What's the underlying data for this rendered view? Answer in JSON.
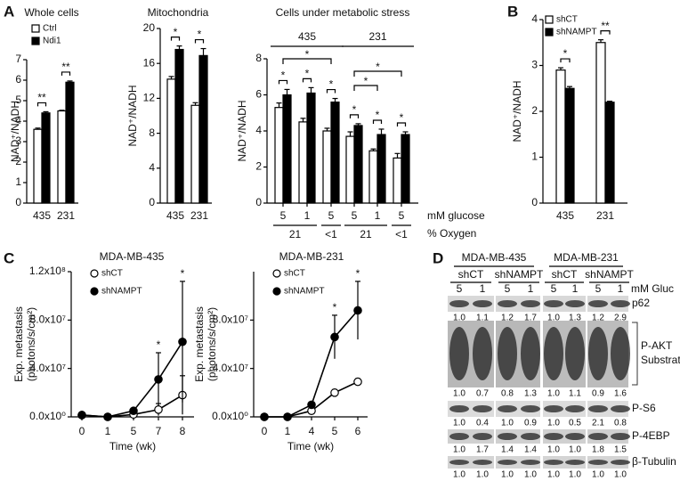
{
  "panel_labels": [
    "A",
    "B",
    "C",
    "D"
  ],
  "chart_data": [
    {
      "type": "bar",
      "title": "Whole cells",
      "ylabel": "NAD⁺/NADH",
      "categories": [
        "435",
        "231"
      ],
      "series": [
        {
          "name": "Ctrl",
          "color": "#ffffff",
          "values": [
            3.6,
            4.5
          ],
          "errors": [
            0.06,
            0.03
          ]
        },
        {
          "name": "Ndi1",
          "color": "#000000",
          "values": [
            4.4,
            5.9
          ],
          "errors": [
            0.06,
            0.06
          ]
        }
      ],
      "ylim": [
        0,
        7
      ],
      "yticks": [
        0,
        1,
        2,
        3,
        4,
        5,
        6,
        7
      ],
      "significance": [
        "**",
        "**"
      ]
    },
    {
      "type": "bar",
      "title": "Mitochondria",
      "ylabel": "NAD⁺/NADH",
      "categories": [
        "435",
        "231"
      ],
      "series": [
        {
          "color": "#ffffff",
          "values": [
            14.2,
            11.2
          ],
          "errors": [
            0.3,
            0.3
          ]
        },
        {
          "color": "#000000",
          "values": [
            17.6,
            16.9
          ],
          "errors": [
            0.4,
            0.8
          ]
        }
      ],
      "ylim": [
        0,
        20
      ],
      "yticks": [
        0,
        4,
        8,
        12,
        16,
        20
      ],
      "significance": [
        "*",
        "*"
      ]
    },
    {
      "type": "bar",
      "title": "Cells under metabolic stress",
      "ylabel": "NAD⁺/NADH",
      "categories": [
        "5",
        "1",
        "5",
        "5",
        "1",
        "5"
      ],
      "category_label": "mM glucose",
      "oxygen": [
        "21",
        "<1",
        "21",
        "<1"
      ],
      "oxygen_label": "% Oxygen",
      "groups": [
        "435",
        "231"
      ],
      "series": [
        {
          "color": "#ffffff",
          "values": [
            5.3,
            4.5,
            4.0,
            3.7,
            2.9,
            2.5
          ],
          "errors": [
            0.25,
            0.2,
            0.15,
            0.25,
            0.1,
            0.25
          ]
        },
        {
          "color": "#000000",
          "values": [
            6.0,
            6.1,
            5.6,
            4.3,
            3.8,
            3.8
          ],
          "errors": [
            0.3,
            0.3,
            0.2,
            0.1,
            0.3,
            0.15
          ]
        }
      ],
      "ylim": [
        0,
        8
      ],
      "yticks": [
        0,
        2,
        4,
        6,
        8
      ],
      "significance": [
        "*",
        "*",
        "*",
        "*",
        "*",
        "*"
      ],
      "comparisons": [
        "*",
        "*",
        "*"
      ]
    },
    {
      "type": "bar",
      "ylabel": "NAD⁺/NADH",
      "categories": [
        "435",
        "231"
      ],
      "series": [
        {
          "name": "shCT",
          "color": "#ffffff",
          "values": [
            2.9,
            3.5
          ],
          "errors": [
            0.05,
            0.06
          ]
        },
        {
          "name": "shNAMPT",
          "color": "#000000",
          "values": [
            2.5,
            2.2
          ],
          "errors": [
            0.04,
            0.02
          ]
        }
      ],
      "ylim": [
        0,
        4
      ],
      "yticks": [
        0,
        1,
        2,
        3,
        4
      ],
      "significance": [
        "*",
        "**"
      ]
    },
    {
      "type": "line",
      "title": "MDA-MB-435",
      "ylabel": "Exp. metastasis",
      "ylabel2": "(photons/s/cm²)",
      "xlabel": "Time (wk)",
      "categories": [
        "0",
        "1",
        "5",
        "7",
        "8"
      ],
      "series": [
        {
          "name": "shCT",
          "color": "#ffffff",
          "values": [
            1500000,
            0,
            2000000,
            6000000,
            18000000
          ],
          "errors": [
            0,
            0,
            1000000,
            5000000,
            16000000
          ]
        },
        {
          "name": "shNAMPT",
          "color": "#000000",
          "values": [
            1500000,
            0,
            5000000,
            31000000,
            62000000
          ],
          "errors": [
            0,
            0,
            1000000,
            22000000,
            50000000
          ]
        }
      ],
      "ylim": [
        0,
        120000000
      ],
      "yticks": [
        {
          "value": 0,
          "label": "0.0x10⁰"
        },
        {
          "value": 40000000,
          "label": "4.0x10⁷"
        },
        {
          "value": 80000000,
          "label": "8.0x10⁷"
        },
        {
          "value": 120000000,
          "label": "1.2x10⁸"
        }
      ],
      "significance": [
        null,
        null,
        null,
        "*",
        "*"
      ]
    },
    {
      "type": "line",
      "title": "MDA-MB-231",
      "ylabel": "Exp. metastasis",
      "ylabel2": "(photons/s/cm²)",
      "xlabel": "Time (wk)",
      "categories": [
        "0",
        "1",
        "4",
        "5",
        "6"
      ],
      "series": [
        {
          "name": "shCT",
          "color": "#ffffff",
          "values": [
            0,
            0,
            5000000,
            20000000,
            29000000
          ],
          "errors": [
            0,
            0,
            1000000,
            2500000,
            2500000
          ]
        },
        {
          "name": "shNAMPT",
          "color": "#000000",
          "values": [
            0,
            0,
            10000000,
            66000000,
            88000000
          ],
          "errors": [
            0,
            0,
            1500000,
            18000000,
            24000000
          ]
        }
      ],
      "ylim": [
        0,
        120000000
      ],
      "yticks": [
        {
          "value": 0,
          "label": "0.0x10⁰"
        },
        {
          "value": 40000000,
          "label": "4.0x10⁷"
        },
        {
          "value": 80000000,
          "label": "8.0x10⁷"
        }
      ],
      "significance": [
        null,
        null,
        null,
        "*",
        "*"
      ]
    }
  ],
  "blot": {
    "cell_lines": [
      "MDA-MB-435",
      "MDA-MB-231"
    ],
    "groups": [
      "shCT",
      "shNAMPT",
      "shCT",
      "shNAMPT"
    ],
    "lanes": [
      "5",
      "1",
      "5",
      "1",
      "5",
      "1",
      "5",
      "1"
    ],
    "lane_label": "mM Gluc",
    "rows": [
      {
        "label": "p62",
        "quant": [
          "1.0",
          "1.1",
          "1.2",
          "1.7",
          "1.0",
          "1.3",
          "1.2",
          "2.9"
        ]
      },
      {
        "label": "P-AKT",
        "label2": "Substrates",
        "quant": [
          "1.0",
          "0.7",
          "0.8",
          "1.3",
          "1.0",
          "1.1",
          "0.9",
          "1.6"
        ]
      },
      {
        "label": "P-S6",
        "quant": [
          "1.0",
          "0.4",
          "1.0",
          "0.9",
          "1.0",
          "0.5",
          "2.1",
          "0.8"
        ]
      },
      {
        "label": "P-4EBP",
        "quant": [
          "1.0",
          "1.7",
          "1.4",
          "1.4",
          "1.0",
          "1.0",
          "1.8",
          "1.5"
        ]
      },
      {
        "label": "β-Tubulin",
        "quant": [
          "1.0",
          "1.0",
          "1.0",
          "1.0",
          "1.0",
          "1.0",
          "1.0",
          "1.0"
        ]
      }
    ]
  }
}
